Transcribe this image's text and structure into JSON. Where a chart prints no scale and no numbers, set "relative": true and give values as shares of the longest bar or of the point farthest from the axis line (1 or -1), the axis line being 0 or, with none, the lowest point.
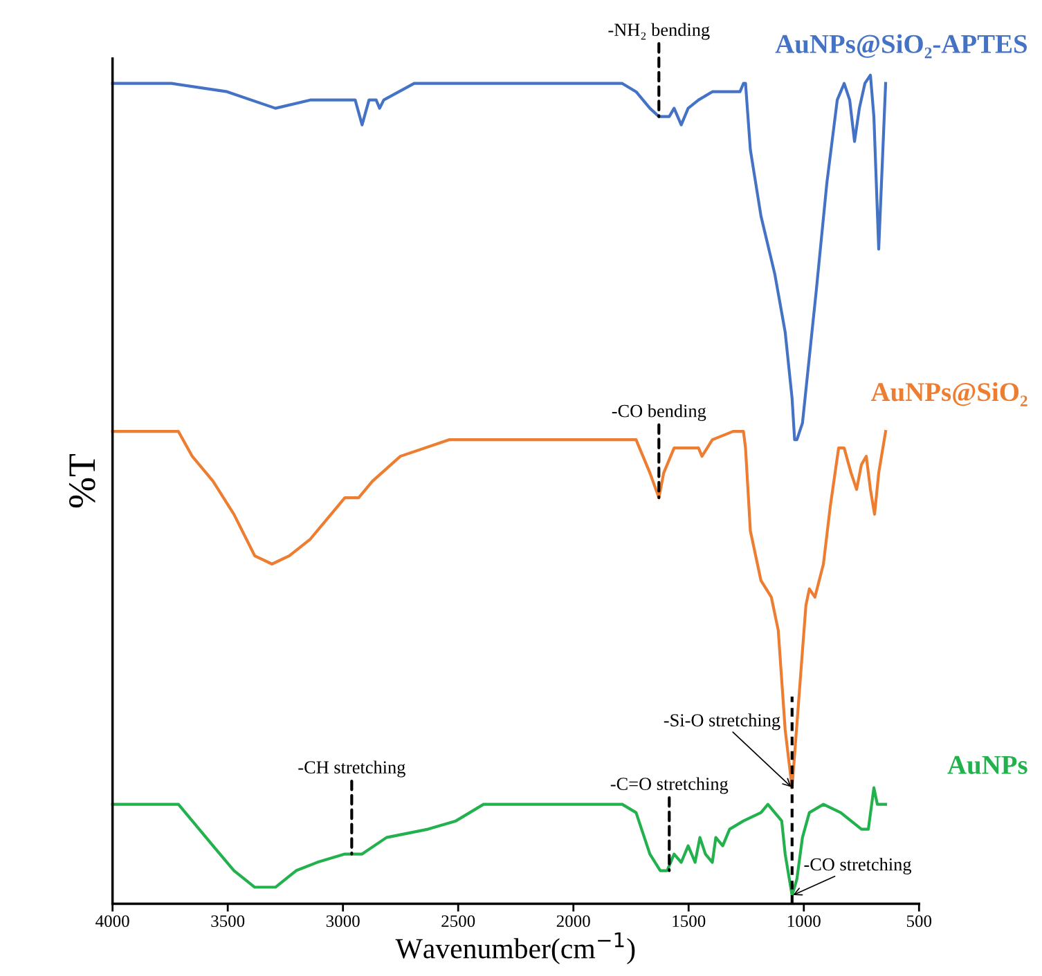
{
  "chart_data": {
    "type": "line",
    "relative": true,
    "xlabel": "Wavenumber(cm$^{−1}$)",
    "ylabel": "%T",
    "xlim": [
      4000,
      500
    ],
    "xticks": [
      4000,
      3500,
      3000,
      2500,
      2000,
      1500,
      1000,
      500
    ],
    "grid": false,
    "legend": false,
    "line_style": "solid",
    "marker": "none",
    "tick_labels": "x",
    "series": [
      {
        "name": "AuNPs@SiO₂-APTES",
        "color": "#4472c4",
        "x": [
          4000,
          3744,
          3503,
          3293,
          3142,
          2992,
          2947,
          2917,
          2887,
          2856,
          2841,
          2823,
          2691,
          2390,
          1788,
          1728,
          1668,
          1629,
          1608,
          1584,
          1563,
          1532,
          1502,
          1457,
          1397,
          1337,
          1277,
          1262,
          1253,
          1232,
          1186,
          1126,
          1081,
          1051,
          1040,
          1030,
          1006,
          976,
          946,
          900,
          855,
          825,
          801,
          780,
          759,
          735,
          711,
          696,
          675,
          657,
          645
        ],
        "values": [
          0.99,
          0.99,
          0.98,
          0.96,
          0.97,
          0.97,
          0.97,
          0.94,
          0.97,
          0.97,
          0.96,
          0.97,
          0.99,
          0.99,
          0.99,
          0.98,
          0.96,
          0.95,
          0.95,
          0.95,
          0.96,
          0.94,
          0.96,
          0.97,
          0.98,
          0.98,
          0.98,
          0.99,
          0.99,
          0.91,
          0.83,
          0.76,
          0.69,
          0.61,
          0.56,
          0.56,
          0.58,
          0.66,
          0.74,
          0.87,
          0.97,
          0.99,
          0.97,
          0.92,
          0.96,
          0.99,
          1.0,
          0.95,
          0.79,
          0.91,
          0.99
        ]
      },
      {
        "name": "AuNPs@SiO₂",
        "color": "#ed7d31",
        "x": [
          4000,
          3714,
          3654,
          3564,
          3473,
          3383,
          3308,
          3233,
          3142,
          3052,
          2992,
          2962,
          2932,
          2872,
          2751,
          2540,
          2089,
          1788,
          1728,
          1668,
          1629,
          1608,
          1563,
          1517,
          1457,
          1442,
          1397,
          1307,
          1262,
          1253,
          1232,
          1186,
          1141,
          1111,
          1081,
          1051,
          1021,
          991,
          976,
          952,
          915,
          885,
          849,
          825,
          795,
          771,
          750,
          729,
          711,
          693,
          675,
          645
        ],
        "values": [
          0.57,
          0.57,
          0.54,
          0.51,
          0.47,
          0.42,
          0.41,
          0.42,
          0.44,
          0.47,
          0.49,
          0.49,
          0.49,
          0.51,
          0.54,
          0.56,
          0.56,
          0.56,
          0.56,
          0.52,
          0.49,
          0.52,
          0.55,
          0.55,
          0.55,
          0.54,
          0.56,
          0.57,
          0.57,
          0.55,
          0.45,
          0.39,
          0.37,
          0.33,
          0.21,
          0.14,
          0.25,
          0.36,
          0.38,
          0.37,
          0.41,
          0.48,
          0.55,
          0.55,
          0.52,
          0.5,
          0.53,
          0.54,
          0.5,
          0.47,
          0.52,
          0.57
        ]
      },
      {
        "name": "AuNPs",
        "color": "#22b14c",
        "x": [
          4000,
          3714,
          3654,
          3564,
          3473,
          3383,
          3293,
          3203,
          3112,
          2992,
          2947,
          2917,
          2811,
          2631,
          2510,
          2390,
          2270,
          2149,
          1939,
          1788,
          1728,
          1668,
          1623,
          1593,
          1563,
          1532,
          1502,
          1472,
          1451,
          1427,
          1397,
          1382,
          1352,
          1322,
          1262,
          1186,
          1156,
          1126,
          1096,
          1081,
          1051,
          1030,
          1006,
          976,
          915,
          840,
          795,
          750,
          720,
          696,
          681,
          660,
          645
        ],
        "values": [
          0.12,
          0.12,
          0.1,
          0.07,
          0.04,
          0.02,
          0.02,
          0.04,
          0.05,
          0.06,
          0.06,
          0.06,
          0.08,
          0.09,
          0.1,
          0.12,
          0.12,
          0.12,
          0.12,
          0.12,
          0.11,
          0.06,
          0.04,
          0.04,
          0.06,
          0.05,
          0.07,
          0.05,
          0.08,
          0.06,
          0.05,
          0.08,
          0.07,
          0.09,
          0.1,
          0.11,
          0.12,
          0.11,
          0.1,
          0.06,
          0.01,
          0.03,
          0.08,
          0.11,
          0.12,
          0.11,
          0.1,
          0.09,
          0.09,
          0.14,
          0.12,
          0.12,
          0.12
        ]
      }
    ],
    "annotations": [
      {
        "text": "-NH₂ bending",
        "x": 1629,
        "y": 0.95
      },
      {
        "text": "-CO bending",
        "x": 1629,
        "y": 0.49
      },
      {
        "text": "-Si-O stretching",
        "x": 1051,
        "y": 0.14
      },
      {
        "text": "-CH stretching",
        "x": 2962,
        "y": 0.06
      },
      {
        "text": "-C=O stretching",
        "x": 1584,
        "y": 0.04
      },
      {
        "text": "-CO stretching",
        "x": 1051,
        "y": 0.01
      }
    ]
  }
}
